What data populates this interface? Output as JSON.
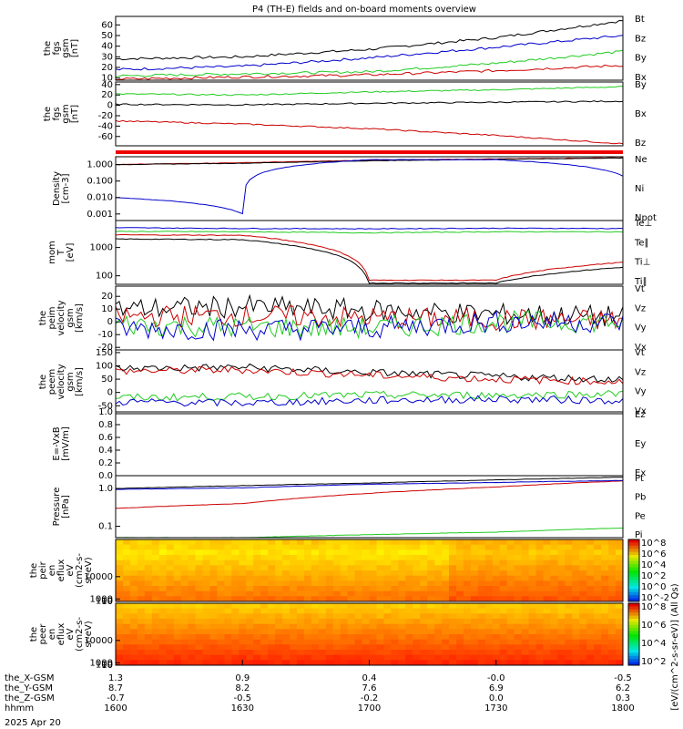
{
  "title": "P4 (TH-E) fields and on-board moments overview",
  "date_label": "2025 Apr 20",
  "x_axis": {
    "rows": [
      {
        "label": "the_X-GSM",
        "values": [
          "1.3",
          "0.9",
          "0.4",
          "-0.0",
          "-0.5"
        ]
      },
      {
        "label": "the_Y-GSM",
        "values": [
          "8.7",
          "8.2",
          "7.6",
          "6.9",
          "6.2"
        ]
      },
      {
        "label": "the_Z-GSM",
        "values": [
          "-0.7",
          "-0.5",
          "-0.2",
          "0.0",
          "0.3"
        ]
      },
      {
        "label": "hhmm",
        "values": [
          "1600",
          "1630",
          "1700",
          "1730",
          "1800"
        ]
      }
    ]
  },
  "colorbar_label": "[eV/(cm^2-s-sr-eV)] (All Qs)",
  "chart_data": [
    {
      "type": "line",
      "panel": "fgs_gsm_mag",
      "ylabel": [
        "the",
        "fgs",
        "gsm",
        "[nT]"
      ],
      "yticks": [
        "10",
        "20",
        "30",
        "40",
        "50",
        "60"
      ],
      "ylim": [
        8,
        68
      ],
      "x": [
        "1600",
        "1630",
        "1700",
        "1730",
        "1800"
      ],
      "series": [
        {
          "name": "Bt",
          "color": "#000000",
          "values": [
            28,
            30,
            37,
            48,
            64
          ]
        },
        {
          "name": "Bz",
          "color": "#0000cc",
          "values": [
            18,
            21,
            29,
            39,
            50
          ]
        },
        {
          "name": "By",
          "color": "#22cc22",
          "values": [
            12,
            14,
            16,
            24,
            35
          ]
        },
        {
          "name": "Bx",
          "color": "#cc0000",
          "values": [
            9,
            11,
            13,
            17,
            22
          ]
        }
      ]
    },
    {
      "type": "line",
      "panel": "fgs_gsm_components",
      "ylabel": [
        "the",
        "fgs",
        "gsm",
        "[nT]"
      ],
      "yticks": [
        "40",
        "20",
        "0",
        "-20",
        "-40",
        "-60"
      ],
      "ylim": [
        -78,
        45
      ],
      "x": [
        "1600",
        "1630",
        "1700",
        "1730",
        "1800"
      ],
      "series": [
        {
          "name": "By",
          "color": "#22cc22",
          "values": [
            22,
            20,
            26,
            30,
            36
          ]
        },
        {
          "name": "Bx",
          "color": "#000000",
          "values": [
            2,
            1,
            4,
            6,
            8
          ]
        },
        {
          "name": "Bz",
          "color": "#cc0000",
          "values": [
            -30,
            -36,
            -45,
            -58,
            -74
          ]
        }
      ]
    },
    {
      "type": "line",
      "panel": "density",
      "scale": "log",
      "ylabel": [
        "Density",
        "[cm-3]"
      ],
      "yticks": [
        "1.000",
        "0.100",
        "0.010",
        "0.001"
      ],
      "ylim": [
        0.0004,
        3
      ],
      "x": [
        "1600",
        "1630",
        "1700",
        "1730",
        "1800"
      ],
      "series": [
        {
          "name": "Ne",
          "color": "#cc0000",
          "values": [
            1.0,
            1.3,
            1.8,
            2.2,
            2.6
          ]
        },
        {
          "name": "Ni",
          "color": "#000000",
          "values": [
            1.0,
            1.2,
            1.7,
            2.1,
            2.5
          ]
        },
        {
          "name": "Npot",
          "color": "#0000cc",
          "values": [
            0.01,
            0.001,
            2.0,
            2.0,
            0.2
          ]
        }
      ]
    },
    {
      "type": "line",
      "panel": "temperature",
      "scale": "log",
      "ylabel": [
        "mom",
        "T",
        "[eV]"
      ],
      "yticks": [
        "1000",
        "100"
      ],
      "ylim": [
        50,
        9000
      ],
      "x": [
        "1600",
        "1630",
        "1700",
        "1730",
        "1800"
      ],
      "series": [
        {
          "name": "Te⊥",
          "color": "#cc0000",
          "values": [
            2800,
            2700,
            70,
            70,
            300
          ]
        },
        {
          "name": "Te∥",
          "color": "#000000",
          "values": [
            2000,
            1900,
            55,
            55,
            200
          ]
        },
        {
          "name": "Ti⊥",
          "color": "#0000cc",
          "values": [
            5000,
            4700,
            4600,
            4800,
            4700
          ]
        },
        {
          "name": "Ti∥",
          "color": "#22cc22",
          "values": [
            3700,
            3600,
            3300,
            3600,
            3600
          ]
        }
      ]
    },
    {
      "type": "line",
      "panel": "peim_velocity",
      "ylabel": [
        "the",
        "peim",
        "velocity",
        "gsm",
        "[km/s]"
      ],
      "yticks": [
        "20",
        "10",
        "0",
        "-10",
        "-20"
      ],
      "ylim": [
        -22,
        28
      ],
      "x": [
        "1600",
        "1630",
        "1700",
        "1730",
        "1800"
      ],
      "series": [
        {
          "name": "Vt",
          "color": "#000000",
          "values": [
            10,
            12,
            9,
            6,
            4
          ]
        },
        {
          "name": "Vz",
          "color": "#cc0000",
          "values": [
            4,
            5,
            3,
            2,
            1
          ]
        },
        {
          "name": "Vy",
          "color": "#22cc22",
          "values": [
            -2,
            -4,
            -5,
            0,
            0
          ]
        },
        {
          "name": "Vx",
          "color": "#0000cc",
          "values": [
            -5,
            -6,
            -5,
            0,
            0
          ]
        }
      ]
    },
    {
      "type": "line",
      "panel": "peem_velocity",
      "ylabel": [
        "the",
        "peem",
        "velocity",
        "gsm",
        "[km/s]"
      ],
      "yticks": [
        "150",
        "100",
        "50",
        "0",
        "-50"
      ],
      "ylim": [
        -80,
        160
      ],
      "x": [
        "1600",
        "1630",
        "1700",
        "1730",
        "1800"
      ],
      "series": [
        {
          "name": "Vt",
          "color": "#000000",
          "values": [
            90,
            95,
            75,
            60,
            50
          ]
        },
        {
          "name": "Vz",
          "color": "#cc0000",
          "values": [
            80,
            85,
            65,
            50,
            40
          ]
        },
        {
          "name": "Vy",
          "color": "#22cc22",
          "values": [
            -20,
            -15,
            -10,
            -10,
            -5
          ]
        },
        {
          "name": "Vx",
          "color": "#0000cc",
          "values": [
            -35,
            -40,
            -30,
            -25,
            -30
          ]
        }
      ]
    },
    {
      "type": "line",
      "panel": "efield",
      "ylabel": [
        "E=-VxB",
        "[mV/m]"
      ],
      "yticks": [
        "1.0",
        "0.8",
        "0.6",
        "0.4",
        "0.2",
        "0.0"
      ],
      "ylim": [
        0,
        1
      ],
      "series": [
        {
          "name": "Ez",
          "color": "#cc0000",
          "values": []
        },
        {
          "name": "Ey",
          "color": "#22cc22",
          "values": []
        },
        {
          "name": "Ex",
          "color": "#0000cc",
          "values": []
        }
      ]
    },
    {
      "type": "line",
      "panel": "pressure",
      "scale": "log",
      "ylabel": [
        "Pressure",
        "[nPa]"
      ],
      "yticks": [
        "1.0",
        "0.1"
      ],
      "ylim": [
        0.05,
        2.2
      ],
      "x": [
        "1600",
        "1630",
        "1700",
        "1730",
        "1800"
      ],
      "series": [
        {
          "name": "Pt",
          "color": "#000000",
          "values": [
            1.0,
            1.2,
            1.4,
            1.7,
            2.0
          ]
        },
        {
          "name": "Pb",
          "color": "#cc0000",
          "values": [
            0.3,
            0.4,
            0.75,
            1.1,
            1.6
          ]
        },
        {
          "name": "Pe",
          "color": "#22cc22",
          "values": [
            0.05,
            0.05,
            0.06,
            0.07,
            0.09
          ]
        },
        {
          "name": "Pi",
          "color": "#0000cc",
          "values": [
            0.95,
            1.05,
            1.3,
            1.45,
            1.65
          ]
        }
      ]
    },
    {
      "type": "heatmap",
      "panel": "peir_en_eflux",
      "ylabel": [
        "the",
        "peir",
        "en",
        "eflux",
        "eV",
        "(cm2-s-",
        "sr-eV)"
      ],
      "yticks": [
        "10000",
        "1000",
        "100",
        "10"
      ],
      "ylim": [
        5,
        25000
      ],
      "colorbar_ticks": [
        "10^8",
        "10^6",
        "10^4",
        "10^2",
        "10^0",
        "10^-2"
      ]
    },
    {
      "type": "heatmap",
      "panel": "peer_en_eflux",
      "ylabel": [
        "the",
        "peer",
        "en",
        "eflux",
        "eV",
        "(cm2-s-",
        "sr-eV)"
      ],
      "yticks": [
        "10000",
        "1000",
        "100",
        "10"
      ],
      "ylim": [
        5,
        25000
      ],
      "colorbar_ticks": [
        "10^8",
        "10^6",
        "10^4",
        "10^2"
      ]
    }
  ]
}
